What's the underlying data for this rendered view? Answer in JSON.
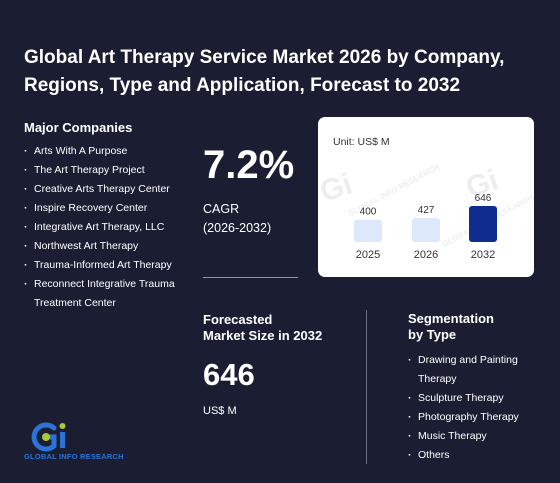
{
  "title_line1": "Global Art Therapy Service Market 2026 by Company,",
  "title_line2": "Regions, Type and Application, Forecast to 2032",
  "companies": {
    "heading": "Major Companies",
    "items": [
      "Arts With A Purpose",
      "The Art Therapy Project",
      "Creative Arts Therapy Center",
      "Inspire Recovery Center",
      "Integrative Art Therapy, LLC",
      "Northwest Art Therapy",
      "Trauma-Informed Art Therapy",
      "Reconnect Integrative Trauma Treatment Center"
    ]
  },
  "cagr": {
    "value": "7.2%",
    "label": "CAGR",
    "period": "(2026-2032)"
  },
  "forecast": {
    "label_line1": "Forecasted",
    "label_line2": "Market Size in 2032",
    "value": "646",
    "unit": "US$ M"
  },
  "segmentation": {
    "heading_line1": "Segmentation",
    "heading_line2": "by Type",
    "items": [
      "Drawing and Painting Therapy",
      "Sculpture Therapy",
      "Photography Therapy",
      "Music Therapy",
      "Others"
    ]
  },
  "logo": {
    "text": "GLOBAL INFO RESEARCH",
    "watermark": "GLOBAL INFO RESEARCH"
  },
  "colors": {
    "background": "#1b1e33",
    "bar_light": "#dbe9fb",
    "bar_dark": "#0f2d8f",
    "logo_blue": "#2b73d6",
    "logo_green": "#a6c93a"
  },
  "chart_data": {
    "type": "bar",
    "unit_label": "Unit: US$ M",
    "categories": [
      "2025",
      "2026",
      "2032"
    ],
    "values": [
      400,
      427,
      646
    ],
    "highlight": "2032"
  }
}
